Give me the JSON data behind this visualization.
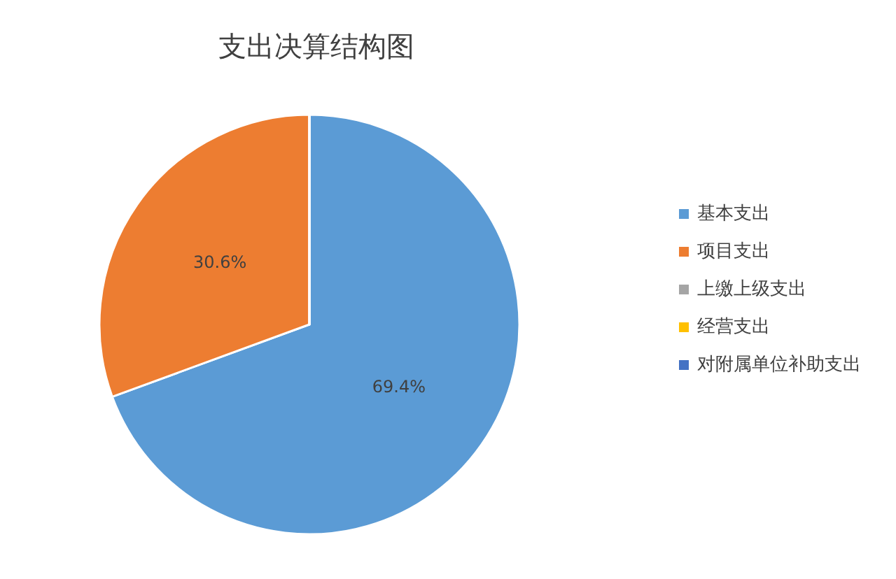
{
  "chart_data": {
    "type": "pie",
    "title": "支出决算结构图",
    "categories": [
      "基本支出",
      "项目支出",
      "上缴上级支出",
      "经营支出",
      "对附属单位补助支出"
    ],
    "values": [
      69.4,
      30.6,
      0,
      0,
      0
    ],
    "colors": [
      "#5b9bd5",
      "#ed7d31",
      "#a5a5a5",
      "#ffc000",
      "#4472c4"
    ],
    "value_labels": [
      "69.4%",
      "30.6%",
      null,
      null,
      null
    ],
    "legend": "right"
  }
}
